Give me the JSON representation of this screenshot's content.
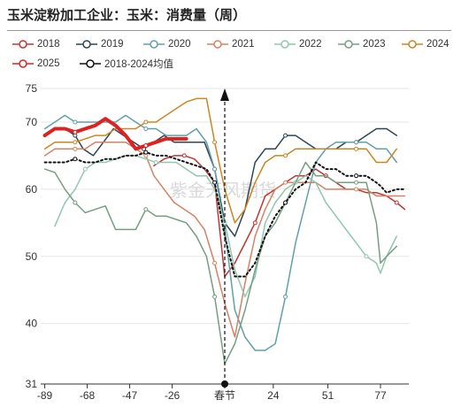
{
  "title": "玉米淀粉加工企业：玉米：消费量（周）",
  "watermark": "紫金天风期货",
  "chart_data": {
    "type": "line",
    "x_ticks": [
      -89,
      -68,
      -47,
      -26,
      "春节",
      24,
      51,
      77
    ],
    "x_range": [
      -91,
      91
    ],
    "y_ticks": [
      31,
      40,
      50,
      60,
      70,
      75
    ],
    "ylim": [
      31,
      75
    ],
    "spring_festival_x": 0,
    "spring_festival_label": "春节",
    "series": [
      {
        "name": "2018",
        "color": "#c23531",
        "marker": "circle",
        "dash": "solid",
        "width": 1.5,
        "points": [
          [
            -35,
            63.5
          ],
          [
            -30,
            64.5
          ],
          [
            -25,
            65
          ],
          [
            -20,
            65
          ],
          [
            -15,
            64.5
          ],
          [
            -10,
            63
          ],
          [
            -5,
            61
          ],
          [
            0,
            47
          ],
          [
            5,
            49
          ],
          [
            10,
            52
          ],
          [
            15,
            55
          ],
          [
            20,
            59
          ],
          [
            25,
            60
          ],
          [
            30,
            61
          ],
          [
            35,
            62
          ],
          [
            40,
            62
          ],
          [
            45,
            63
          ],
          [
            50,
            62
          ],
          [
            55,
            61
          ],
          [
            60,
            60
          ],
          [
            65,
            60
          ],
          [
            70,
            59.5
          ],
          [
            75,
            59.5
          ],
          [
            80,
            59
          ],
          [
            85,
            58
          ],
          [
            89,
            57
          ]
        ]
      },
      {
        "name": "2019",
        "color": "#2f4554",
        "marker": "circle",
        "dash": "solid",
        "width": 1.5,
        "points": [
          [
            -89,
            68
          ],
          [
            -84,
            69
          ],
          [
            -79,
            69
          ],
          [
            -74,
            68
          ],
          [
            -70,
            66
          ],
          [
            -65,
            65
          ],
          [
            -60,
            67
          ],
          [
            -55,
            69
          ],
          [
            -50,
            68
          ],
          [
            -45,
            67
          ],
          [
            -40,
            66
          ],
          [
            -35,
            67
          ],
          [
            -30,
            68
          ],
          [
            -25,
            67
          ],
          [
            -20,
            67
          ],
          [
            -15,
            67
          ],
          [
            -10,
            67
          ],
          [
            -5,
            63
          ],
          [
            0,
            55
          ],
          [
            5,
            53
          ],
          [
            10,
            57
          ],
          [
            15,
            64
          ],
          [
            20,
            66
          ],
          [
            25,
            66
          ],
          [
            30,
            68
          ],
          [
            35,
            68
          ],
          [
            40,
            67
          ],
          [
            45,
            66
          ],
          [
            50,
            66
          ],
          [
            55,
            66
          ],
          [
            60,
            67
          ],
          [
            65,
            67
          ],
          [
            70,
            68
          ],
          [
            75,
            69
          ],
          [
            80,
            69
          ],
          [
            85,
            68
          ]
        ]
      },
      {
        "name": "2020",
        "color": "#61a0a8",
        "marker": "circle",
        "dash": "solid",
        "width": 1.5,
        "points": [
          [
            -89,
            69
          ],
          [
            -84,
            70
          ],
          [
            -79,
            71
          ],
          [
            -74,
            70
          ],
          [
            -69,
            70
          ],
          [
            -64,
            70
          ],
          [
            -59,
            70
          ],
          [
            -54,
            70
          ],
          [
            -49,
            71
          ],
          [
            -44,
            70
          ],
          [
            -39,
            69
          ],
          [
            -34,
            69
          ],
          [
            -29,
            68
          ],
          [
            -24,
            68
          ],
          [
            -19,
            68
          ],
          [
            -14,
            69
          ],
          [
            -9,
            67
          ],
          [
            -5,
            63
          ],
          [
            0,
            54
          ],
          [
            5,
            42
          ],
          [
            10,
            38
          ],
          [
            15,
            36
          ],
          [
            20,
            36
          ],
          [
            25,
            37
          ],
          [
            30,
            44
          ],
          [
            35,
            52
          ],
          [
            40,
            58
          ],
          [
            45,
            64
          ],
          [
            50,
            66
          ],
          [
            55,
            67
          ],
          [
            60,
            67
          ],
          [
            65,
            67
          ],
          [
            70,
            67
          ],
          [
            75,
            66
          ],
          [
            80,
            66
          ],
          [
            85,
            64
          ]
        ]
      },
      {
        "name": "2021",
        "color": "#d48265",
        "marker": "circle",
        "dash": "solid",
        "width": 1.5,
        "points": [
          [
            -89,
            65
          ],
          [
            -84,
            66
          ],
          [
            -79,
            66
          ],
          [
            -74,
            66
          ],
          [
            -69,
            66
          ],
          [
            -64,
            67
          ],
          [
            -59,
            67
          ],
          [
            -54,
            67
          ],
          [
            -49,
            67
          ],
          [
            -44,
            66
          ],
          [
            -39,
            65
          ],
          [
            -35,
            62
          ],
          [
            -30,
            60
          ],
          [
            -25,
            58
          ],
          [
            -20,
            57
          ],
          [
            -15,
            56
          ],
          [
            -10,
            54
          ],
          [
            -5,
            49
          ],
          [
            0,
            43
          ],
          [
            5,
            38
          ],
          [
            10,
            46
          ],
          [
            15,
            53
          ],
          [
            20,
            57
          ],
          [
            25,
            60
          ],
          [
            30,
            61
          ],
          [
            35,
            61
          ],
          [
            40,
            61
          ],
          [
            45,
            61
          ],
          [
            50,
            60
          ],
          [
            55,
            60
          ],
          [
            60,
            60
          ],
          [
            65,
            60
          ],
          [
            70,
            60
          ],
          [
            75,
            59
          ],
          [
            80,
            59
          ],
          [
            85,
            59
          ],
          [
            89,
            59
          ]
        ]
      },
      {
        "name": "2022",
        "color": "#91c7ae",
        "marker": "circle",
        "dash": "solid",
        "width": 1.5,
        "points": [
          [
            -84,
            54.5
          ],
          [
            -79,
            58
          ],
          [
            -74,
            60
          ],
          [
            -69,
            63
          ],
          [
            -64,
            64
          ],
          [
            -59,
            64
          ],
          [
            -54,
            64.5
          ],
          [
            -49,
            65
          ],
          [
            -44,
            65
          ],
          [
            -39,
            64.5
          ],
          [
            -34,
            64
          ],
          [
            -29,
            64
          ],
          [
            -24,
            64
          ],
          [
            -19,
            63
          ],
          [
            -14,
            62
          ],
          [
            -9,
            62
          ],
          [
            -5,
            60
          ],
          [
            0,
            55
          ],
          [
            5,
            48
          ],
          [
            10,
            44
          ],
          [
            15,
            47
          ],
          [
            20,
            55
          ],
          [
            25,
            58
          ],
          [
            30,
            60
          ],
          [
            35,
            61
          ],
          [
            40,
            62
          ],
          [
            45,
            61
          ],
          [
            50,
            58
          ],
          [
            55,
            56
          ],
          [
            60,
            54
          ],
          [
            65,
            52
          ],
          [
            70,
            50
          ],
          [
            75,
            49
          ],
          [
            77,
            47.5
          ],
          [
            80,
            50
          ],
          [
            85,
            53
          ]
        ]
      },
      {
        "name": "2023",
        "color": "#749f83",
        "marker": "circle",
        "dash": "solid",
        "width": 1.5,
        "points": [
          [
            -89,
            63
          ],
          [
            -84,
            62.5
          ],
          [
            -79,
            60
          ],
          [
            -74,
            58
          ],
          [
            -69,
            56.5
          ],
          [
            -64,
            57
          ],
          [
            -59,
            57.5
          ],
          [
            -54,
            54
          ],
          [
            -49,
            54
          ],
          [
            -44,
            54
          ],
          [
            -39,
            57
          ],
          [
            -34,
            56
          ],
          [
            -29,
            56
          ],
          [
            -24,
            55.5
          ],
          [
            -19,
            55
          ],
          [
            -14,
            53
          ],
          [
            -9,
            50
          ],
          [
            -5,
            44
          ],
          [
            0,
            34
          ],
          [
            5,
            37
          ],
          [
            10,
            42
          ],
          [
            15,
            48
          ],
          [
            20,
            53
          ],
          [
            25,
            55
          ],
          [
            30,
            58
          ],
          [
            35,
            61
          ],
          [
            40,
            64
          ],
          [
            45,
            62
          ],
          [
            50,
            62
          ],
          [
            55,
            61
          ],
          [
            60,
            61
          ],
          [
            65,
            61
          ],
          [
            70,
            61
          ],
          [
            75,
            55
          ],
          [
            77,
            49
          ],
          [
            80,
            50
          ],
          [
            85,
            51.5
          ]
        ]
      },
      {
        "name": "2024",
        "color": "#ca8622",
        "marker": "circle",
        "dash": "solid",
        "width": 1.5,
        "points": [
          [
            -89,
            66
          ],
          [
            -84,
            67
          ],
          [
            -79,
            67
          ],
          [
            -74,
            67
          ],
          [
            -69,
            67.5
          ],
          [
            -64,
            68
          ],
          [
            -59,
            68
          ],
          [
            -54,
            69
          ],
          [
            -49,
            69
          ],
          [
            -44,
            69
          ],
          [
            -39,
            70
          ],
          [
            -34,
            70
          ],
          [
            -29,
            71
          ],
          [
            -24,
            72
          ],
          [
            -19,
            73
          ],
          [
            -14,
            73.5
          ],
          [
            -9,
            73.5
          ],
          [
            -5,
            67
          ],
          [
            0,
            60
          ],
          [
            5,
            55
          ],
          [
            10,
            57
          ],
          [
            15,
            61
          ],
          [
            20,
            64
          ],
          [
            25,
            65
          ],
          [
            30,
            65
          ],
          [
            35,
            66
          ],
          [
            40,
            66
          ],
          [
            45,
            66
          ],
          [
            50,
            66
          ],
          [
            55,
            66
          ],
          [
            60,
            66
          ],
          [
            65,
            66
          ],
          [
            70,
            66
          ],
          [
            75,
            64
          ],
          [
            80,
            64
          ],
          [
            85,
            66
          ]
        ]
      },
      {
        "name": "2025",
        "color": "#dd2222",
        "marker": "circle",
        "dash": "solid",
        "width": 4,
        "points": [
          [
            -89,
            68
          ],
          [
            -84,
            69
          ],
          [
            -79,
            69
          ],
          [
            -74,
            68.5
          ],
          [
            -69,
            69
          ],
          [
            -64,
            69.5
          ],
          [
            -59,
            70.5
          ],
          [
            -54,
            69.5
          ],
          [
            -49,
            68
          ],
          [
            -44,
            66
          ],
          [
            -39,
            66.5
          ],
          [
            -34,
            67
          ],
          [
            -29,
            67.5
          ],
          [
            -24,
            67.5
          ],
          [
            -19,
            67.5
          ]
        ]
      },
      {
        "name": "2018-2024均值",
        "color": "#111111",
        "marker": "circle",
        "dash": "dotted",
        "width": 2,
        "points": [
          [
            -89,
            64
          ],
          [
            -84,
            64
          ],
          [
            -79,
            64
          ],
          [
            -74,
            64.5
          ],
          [
            -69,
            64
          ],
          [
            -64,
            64
          ],
          [
            -59,
            64.5
          ],
          [
            -54,
            64.5
          ],
          [
            -49,
            65
          ],
          [
            -44,
            65
          ],
          [
            -39,
            65.5
          ],
          [
            -34,
            65
          ],
          [
            -29,
            65
          ],
          [
            -24,
            64.5
          ],
          [
            -19,
            64
          ],
          [
            -14,
            63.5
          ],
          [
            -9,
            63
          ],
          [
            -5,
            61
          ],
          [
            0,
            53
          ],
          [
            5,
            47
          ],
          [
            10,
            47
          ],
          [
            15,
            49
          ],
          [
            20,
            53
          ],
          [
            25,
            56
          ],
          [
            30,
            58
          ],
          [
            35,
            60
          ],
          [
            40,
            61
          ],
          [
            45,
            64
          ],
          [
            50,
            63
          ],
          [
            55,
            63
          ],
          [
            60,
            62
          ],
          [
            65,
            62
          ],
          [
            70,
            62
          ],
          [
            75,
            61
          ],
          [
            77,
            60.5
          ],
          [
            80,
            59.5
          ],
          [
            85,
            60
          ],
          [
            89,
            60
          ]
        ]
      }
    ]
  }
}
